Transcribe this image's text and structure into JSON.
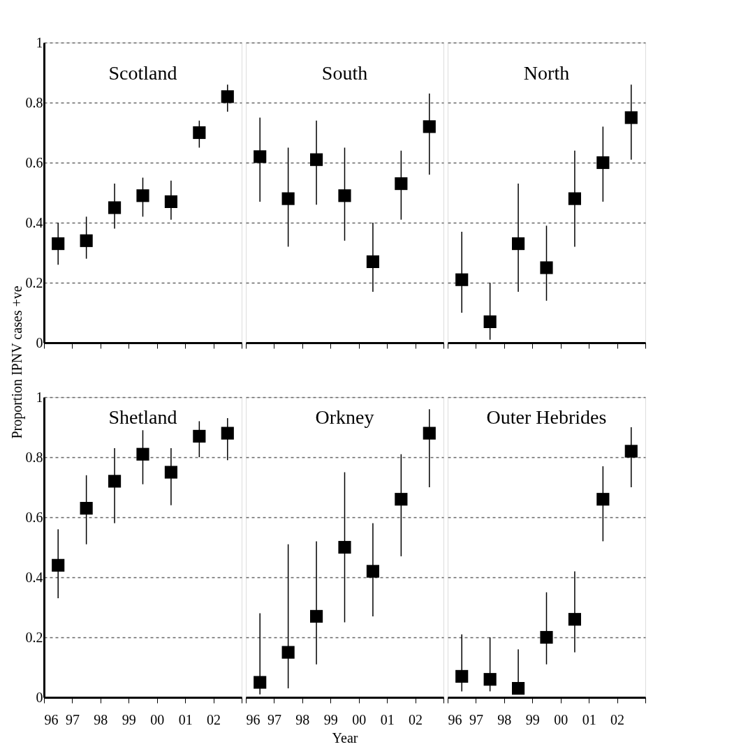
{
  "chart_data": [
    {
      "type": "scatter",
      "title": "Scotland",
      "x": [
        1996.5,
        1997.5,
        1998.5,
        1999.5,
        2000.5,
        2001.5,
        2002.5
      ],
      "values": [
        0.33,
        0.34,
        0.45,
        0.49,
        0.47,
        0.7,
        0.82
      ],
      "errors": [
        [
          0.26,
          0.4
        ],
        [
          0.28,
          0.42
        ],
        [
          0.38,
          0.53
        ],
        [
          0.42,
          0.55
        ],
        [
          0.41,
          0.54
        ],
        [
          0.65,
          0.74
        ],
        [
          0.77,
          0.86
        ]
      ],
      "color": "#000000",
      "marker": "square",
      "xlim": [
        1996,
        2003
      ],
      "xticks": [
        {
          "value": 1996,
          "label": null
        },
        {
          "value": 1997,
          "label": null
        },
        {
          "value": 1998,
          "label": null
        },
        {
          "value": 1999,
          "label": null
        },
        {
          "value": 2000,
          "label": null
        },
        {
          "value": 2001,
          "label": null
        },
        {
          "value": 2002,
          "label": null
        },
        {
          "value": 2003,
          "label": null
        }
      ],
      "ylim": [
        0,
        1
      ],
      "yticks": [
        0,
        0.2,
        0.4,
        0.6,
        0.8,
        1
      ],
      "grid": "y",
      "tick_labels": "y"
    },
    {
      "type": "scatter",
      "title": "South",
      "x": [
        1996.5,
        1997.5,
        1998.5,
        1999.5,
        2000.5,
        2001.5,
        2002.5
      ],
      "values": [
        0.62,
        0.48,
        0.61,
        0.49,
        0.27,
        0.53,
        0.72
      ],
      "errors": [
        [
          0.47,
          0.75
        ],
        [
          0.32,
          0.65
        ],
        [
          0.46,
          0.74
        ],
        [
          0.34,
          0.65
        ],
        [
          0.17,
          0.4
        ],
        [
          0.41,
          0.64
        ],
        [
          0.56,
          0.83
        ]
      ],
      "color": "#000000",
      "marker": "square",
      "xlim": [
        1996,
        2003
      ],
      "xticks": [
        {
          "value": 1996,
          "label": null
        },
        {
          "value": 1997,
          "label": null
        },
        {
          "value": 1998,
          "label": null
        },
        {
          "value": 1999,
          "label": null
        },
        {
          "value": 2000,
          "label": null
        },
        {
          "value": 2001,
          "label": null
        },
        {
          "value": 2002,
          "label": null
        },
        {
          "value": 2003,
          "label": null
        }
      ],
      "ylim": [
        0,
        1
      ],
      "yticks": [
        0,
        0.2,
        0.4,
        0.6,
        0.8,
        1
      ],
      "grid": "y",
      "tick_labels": false
    },
    {
      "type": "scatter",
      "title": "North",
      "x": [
        1996.5,
        1997.5,
        1998.5,
        1999.5,
        2000.5,
        2001.5,
        2002.5
      ],
      "values": [
        0.21,
        0.07,
        0.33,
        0.25,
        0.48,
        0.6,
        0.75
      ],
      "errors": [
        [
          0.1,
          0.37
        ],
        [
          0.01,
          0.2
        ],
        [
          0.17,
          0.53
        ],
        [
          0.14,
          0.39
        ],
        [
          0.32,
          0.64
        ],
        [
          0.47,
          0.72
        ],
        [
          0.61,
          0.86
        ]
      ],
      "color": "#000000",
      "marker": "square",
      "xlim": [
        1996,
        2003
      ],
      "xticks": [
        {
          "value": 1996,
          "label": null
        },
        {
          "value": 1997,
          "label": null
        },
        {
          "value": 1998,
          "label": null
        },
        {
          "value": 1999,
          "label": null
        },
        {
          "value": 2000,
          "label": null
        },
        {
          "value": 2001,
          "label": null
        },
        {
          "value": 2002,
          "label": null
        },
        {
          "value": 2003,
          "label": null
        }
      ],
      "ylim": [
        0,
        1
      ],
      "yticks": [
        0,
        0.2,
        0.4,
        0.6,
        0.8,
        1
      ],
      "grid": "y",
      "tick_labels": false
    },
    {
      "type": "scatter",
      "title": "Shetland",
      "ylabel": "Proportion IPNV cases +ve",
      "x": [
        1996.5,
        1997.5,
        1998.5,
        1999.5,
        2000.5,
        2001.5,
        2002.5
      ],
      "values": [
        0.44,
        0.63,
        0.72,
        0.81,
        0.75,
        0.87,
        0.88
      ],
      "errors": [
        [
          0.33,
          0.56
        ],
        [
          0.51,
          0.74
        ],
        [
          0.58,
          0.83
        ],
        [
          0.71,
          0.89
        ],
        [
          0.64,
          0.83
        ],
        [
          0.8,
          0.92
        ],
        [
          0.79,
          0.93
        ]
      ],
      "color": "#000000",
      "marker": "square",
      "xlim": [
        1996,
        2003
      ],
      "xticks": [
        {
          "value": 1996,
          "label": "96"
        },
        {
          "value": 1997,
          "label": "97"
        },
        {
          "value": 1998,
          "label": "98"
        },
        {
          "value": 1999,
          "label": "99"
        },
        {
          "value": 2000,
          "label": "00"
        },
        {
          "value": 2001,
          "label": "01"
        },
        {
          "value": 2002,
          "label": "02"
        },
        {
          "value": 2003,
          "label": null
        }
      ],
      "ylim": [
        0,
        1
      ],
      "yticks": [
        0,
        0.2,
        0.4,
        0.6,
        0.8,
        1
      ],
      "grid": "y"
    },
    {
      "type": "scatter",
      "title": "Orkney",
      "xlabel": "Year",
      "x": [
        1996.5,
        1997.5,
        1998.5,
        1999.5,
        2000.5,
        2001.5,
        2002.5
      ],
      "values": [
        0.05,
        0.15,
        0.27,
        0.5,
        0.42,
        0.66,
        0.88
      ],
      "errors": [
        [
          0.01,
          0.28
        ],
        [
          0.03,
          0.51
        ],
        [
          0.11,
          0.52
        ],
        [
          0.25,
          0.75
        ],
        [
          0.27,
          0.58
        ],
        [
          0.47,
          0.81
        ],
        [
          0.7,
          0.96
        ]
      ],
      "color": "#000000",
      "marker": "square",
      "xlim": [
        1996,
        2003
      ],
      "xticks": [
        {
          "value": 1996,
          "label": "96"
        },
        {
          "value": 1997,
          "label": "97"
        },
        {
          "value": 1998,
          "label": "98"
        },
        {
          "value": 1999,
          "label": "99"
        },
        {
          "value": 2000,
          "label": "00"
        },
        {
          "value": 2001,
          "label": "01"
        },
        {
          "value": 2002,
          "label": "02"
        },
        {
          "value": 2003,
          "label": null
        }
      ],
      "ylim": [
        0,
        1
      ],
      "yticks": [
        0,
        0.2,
        0.4,
        0.6,
        0.8,
        1
      ],
      "grid": "y",
      "tick_labels": "x"
    },
    {
      "type": "scatter",
      "title": "Outer Hebrides",
      "x": [
        1996.5,
        1997.5,
        1998.5,
        1999.5,
        2000.5,
        2001.5,
        2002.5
      ],
      "values": [
        0.07,
        0.06,
        0.03,
        0.2,
        0.26,
        0.66,
        0.82
      ],
      "errors": [
        [
          0.02,
          0.21
        ],
        [
          0.02,
          0.2
        ],
        [
          0.01,
          0.16
        ],
        [
          0.11,
          0.35
        ],
        [
          0.15,
          0.42
        ],
        [
          0.52,
          0.77
        ],
        [
          0.7,
          0.9
        ]
      ],
      "color": "#000000",
      "marker": "square",
      "xlim": [
        1996,
        2003
      ],
      "xticks": [
        {
          "value": 1996,
          "label": "96"
        },
        {
          "value": 1997,
          "label": "97"
        },
        {
          "value": 1998,
          "label": "98"
        },
        {
          "value": 1999,
          "label": "99"
        },
        {
          "value": 2000,
          "label": "00"
        },
        {
          "value": 2001,
          "label": "01"
        },
        {
          "value": 2002,
          "label": "02"
        },
        {
          "value": 2003,
          "label": null
        }
      ],
      "ylim": [
        0,
        1
      ],
      "yticks": [
        0,
        0.2,
        0.4,
        0.6,
        0.8,
        1
      ],
      "grid": "y",
      "tick_labels": "x"
    }
  ]
}
